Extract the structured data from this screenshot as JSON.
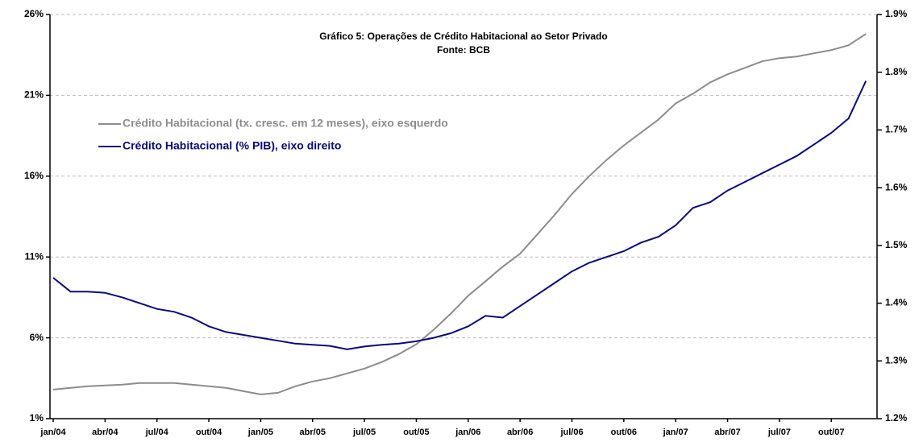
{
  "chart_data": {
    "type": "line",
    "title": "Gráfico 5: Operações de Crédito Habitacional ao Setor Privado",
    "subtitle": "Fonte: BCB",
    "categories": [
      "jan/04",
      null,
      null,
      "abr/04",
      null,
      null,
      "jul/04",
      null,
      null,
      "out/04",
      null,
      null,
      "jan/05",
      null,
      null,
      "abr/05",
      null,
      null,
      "jul/05",
      null,
      null,
      "out/05",
      null,
      null,
      "jan/06",
      null,
      null,
      "abr/06",
      null,
      null,
      "jul/06",
      null,
      null,
      "out/06",
      null,
      null,
      "jan/07",
      null,
      null,
      "abr/07",
      null,
      null,
      "jul/07",
      null,
      null,
      "out/07",
      null,
      null
    ],
    "series": [
      {
        "name": "Crédito Habitacional (tx. cresc. em 12 meses), eixo esquerdo",
        "color": "#8c8c8c",
        "values": [
          2.8,
          2.9,
          3.0,
          3.05,
          3.1,
          3.2,
          3.2,
          3.2,
          3.1,
          3.0,
          2.9,
          2.7,
          2.5,
          2.6,
          3.0,
          3.3,
          3.5,
          3.8,
          4.1,
          4.5,
          5.0,
          5.6,
          6.5,
          7.5,
          8.6,
          9.5,
          10.4,
          11.2,
          12.4,
          13.6,
          14.9,
          16.0,
          17.0,
          17.9,
          18.7,
          19.5,
          20.5,
          21.1,
          21.8,
          22.3,
          22.7,
          23.1,
          23.3,
          23.4,
          23.6,
          23.8,
          24.1,
          24.8
        ]
      },
      {
        "name": "Crédito Habitacional (% PIB), eixo direito",
        "color": "#0a0a7a",
        "axis": "y2",
        "values": [
          1.444,
          1.42,
          1.42,
          1.418,
          1.41,
          1.4,
          1.39,
          1.385,
          1.375,
          1.36,
          1.35,
          1.345,
          1.34,
          1.335,
          1.33,
          1.328,
          1.326,
          1.32,
          1.325,
          1.328,
          1.33,
          1.334,
          1.34,
          1.348,
          1.36,
          1.378,
          1.375,
          1.395,
          1.415,
          1.435,
          1.455,
          1.47,
          1.48,
          1.49,
          1.505,
          1.515,
          1.535,
          1.565,
          1.575,
          1.595,
          1.61,
          1.625,
          1.64,
          1.655,
          1.675,
          1.695,
          1.72,
          1.785
        ]
      }
    ],
    "ylim": [
      1,
      26
    ],
    "yticks": [
      {
        "value": 1,
        "label": "1%"
      },
      {
        "value": 6,
        "label": "6%"
      },
      {
        "value": 11,
        "label": "11%"
      },
      {
        "value": 16,
        "label": "16%"
      },
      {
        "value": 21,
        "label": "21%"
      },
      {
        "value": 26,
        "label": "26%"
      }
    ],
    "y2lim": [
      1.2,
      1.9
    ],
    "y2ticks": [
      {
        "value": 1.2,
        "label": "1.2%"
      },
      {
        "value": 1.3,
        "label": "1.3%"
      },
      {
        "value": 1.4,
        "label": "1.4%"
      },
      {
        "value": 1.5,
        "label": "1.5%"
      },
      {
        "value": 1.6,
        "label": "1.6%"
      },
      {
        "value": 1.7,
        "label": "1.7%"
      },
      {
        "value": 1.8,
        "label": "1.8%"
      },
      {
        "value": 1.9,
        "label": "1.9%"
      }
    ],
    "grid": true
  }
}
